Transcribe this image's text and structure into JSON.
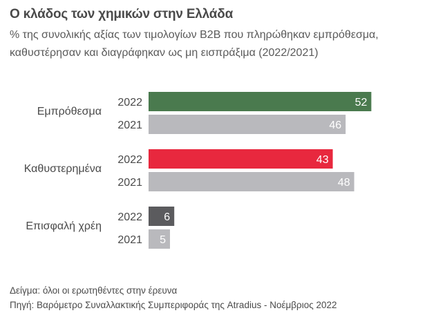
{
  "header": {
    "title": "Ο κλάδος των χημικών στην Ελλάδα",
    "subtitle_line1": "% της συνολικής αξίας των τιμολογίων B2B που πληρώθηκαν εμπρόθεσμα,",
    "subtitle_line2": "καθυστέρησαν και διαγράφηκαν ως μη εισπράξιμα (2022/2021)"
  },
  "chart_data": {
    "type": "bar",
    "orientation": "horizontal",
    "title": "Ο κλάδος των χημικών στην Ελλάδα",
    "subtitle": "% της συνολικής αξίας των τιμολογίων B2B που πληρώθηκαν εμπρόθεσμα, καθυστέρησαν και διαγράφηκαν ως μη εισπράξιμα (2022/2021)",
    "xlim": [
      0,
      60
    ],
    "groups": [
      {
        "label": "Εμπρόθεσμα",
        "bars": [
          {
            "year": "2022",
            "value": 52,
            "color": "#4a7a4e"
          },
          {
            "year": "2021",
            "value": 46,
            "color": "#b9b9bd"
          }
        ]
      },
      {
        "label": "Καθυστερημένα",
        "bars": [
          {
            "year": "2022",
            "value": 43,
            "color": "#e8283e"
          },
          {
            "year": "2021",
            "value": 48,
            "color": "#b9b9bd"
          }
        ]
      },
      {
        "label": "Επισφαλή χρέη",
        "bars": [
          {
            "year": "2022",
            "value": 6,
            "color": "#5b5b5e"
          },
          {
            "year": "2021",
            "value": 5,
            "color": "#b9b9bd"
          }
        ]
      }
    ]
  },
  "footer": {
    "sample": "Δείγμα: όλοι οι ερωτηθέντες στην έρευνα",
    "source": "Πηγή: Βαρόμετρο Συναλλακτικής Συμπεριφοράς της Atradius - Νοέμβριος 2022"
  }
}
